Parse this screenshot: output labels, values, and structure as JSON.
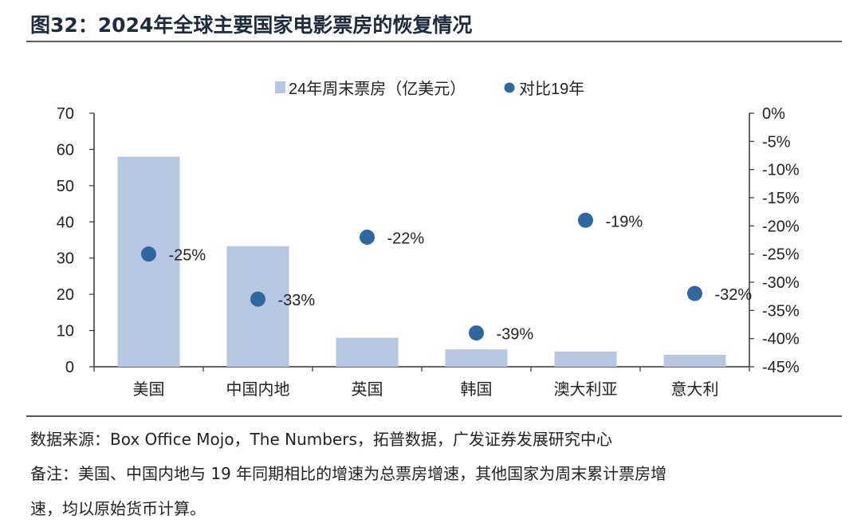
{
  "title": "图32：2024年全球主要国家电影票房的恢复情况",
  "source": "数据来源：Box Office Mojo，The Numbers，拓普数据，广发证券发展研究中心",
  "note_line1": "备注：美国、中国内地与 19 年同期相比的增速为总票房增速，其他国家为周末累计票房增",
  "note_line2": "速，均以原始货币计算。",
  "colors": {
    "bar": "#b8c8e2",
    "dot": "#2f67a0",
    "rule": "#595959",
    "axis": "#333333"
  },
  "chart_data": {
    "type": "bar",
    "categories": [
      "美国",
      "中国内地",
      "英国",
      "韩国",
      "澳大利亚",
      "意大利"
    ],
    "series": [
      {
        "name": "24年周末票房（亿美元）",
        "type": "bar",
        "axis": "left",
        "values": [
          58,
          33.3,
          8,
          4.8,
          4.2,
          3.3
        ]
      },
      {
        "name": "对比19年",
        "type": "scatter",
        "axis": "right",
        "values": [
          -25,
          -33,
          -22,
          -39,
          -19,
          -32
        ],
        "labels": [
          "-25%",
          "-33%",
          "-22%",
          "-39%",
          "-19%",
          "-32%"
        ]
      }
    ],
    "y_left": {
      "min": 0,
      "max": 70,
      "ticks": [
        "0",
        "10",
        "20",
        "30",
        "40",
        "50",
        "60",
        "70"
      ]
    },
    "y_right": {
      "min": -45,
      "max": 0,
      "ticks": [
        "0%",
        "-5%",
        "-10%",
        "-15%",
        "-20%",
        "-25%",
        "-30%",
        "-35%",
        "-40%",
        "-45%"
      ]
    },
    "legend": "top-center",
    "grid": false
  }
}
